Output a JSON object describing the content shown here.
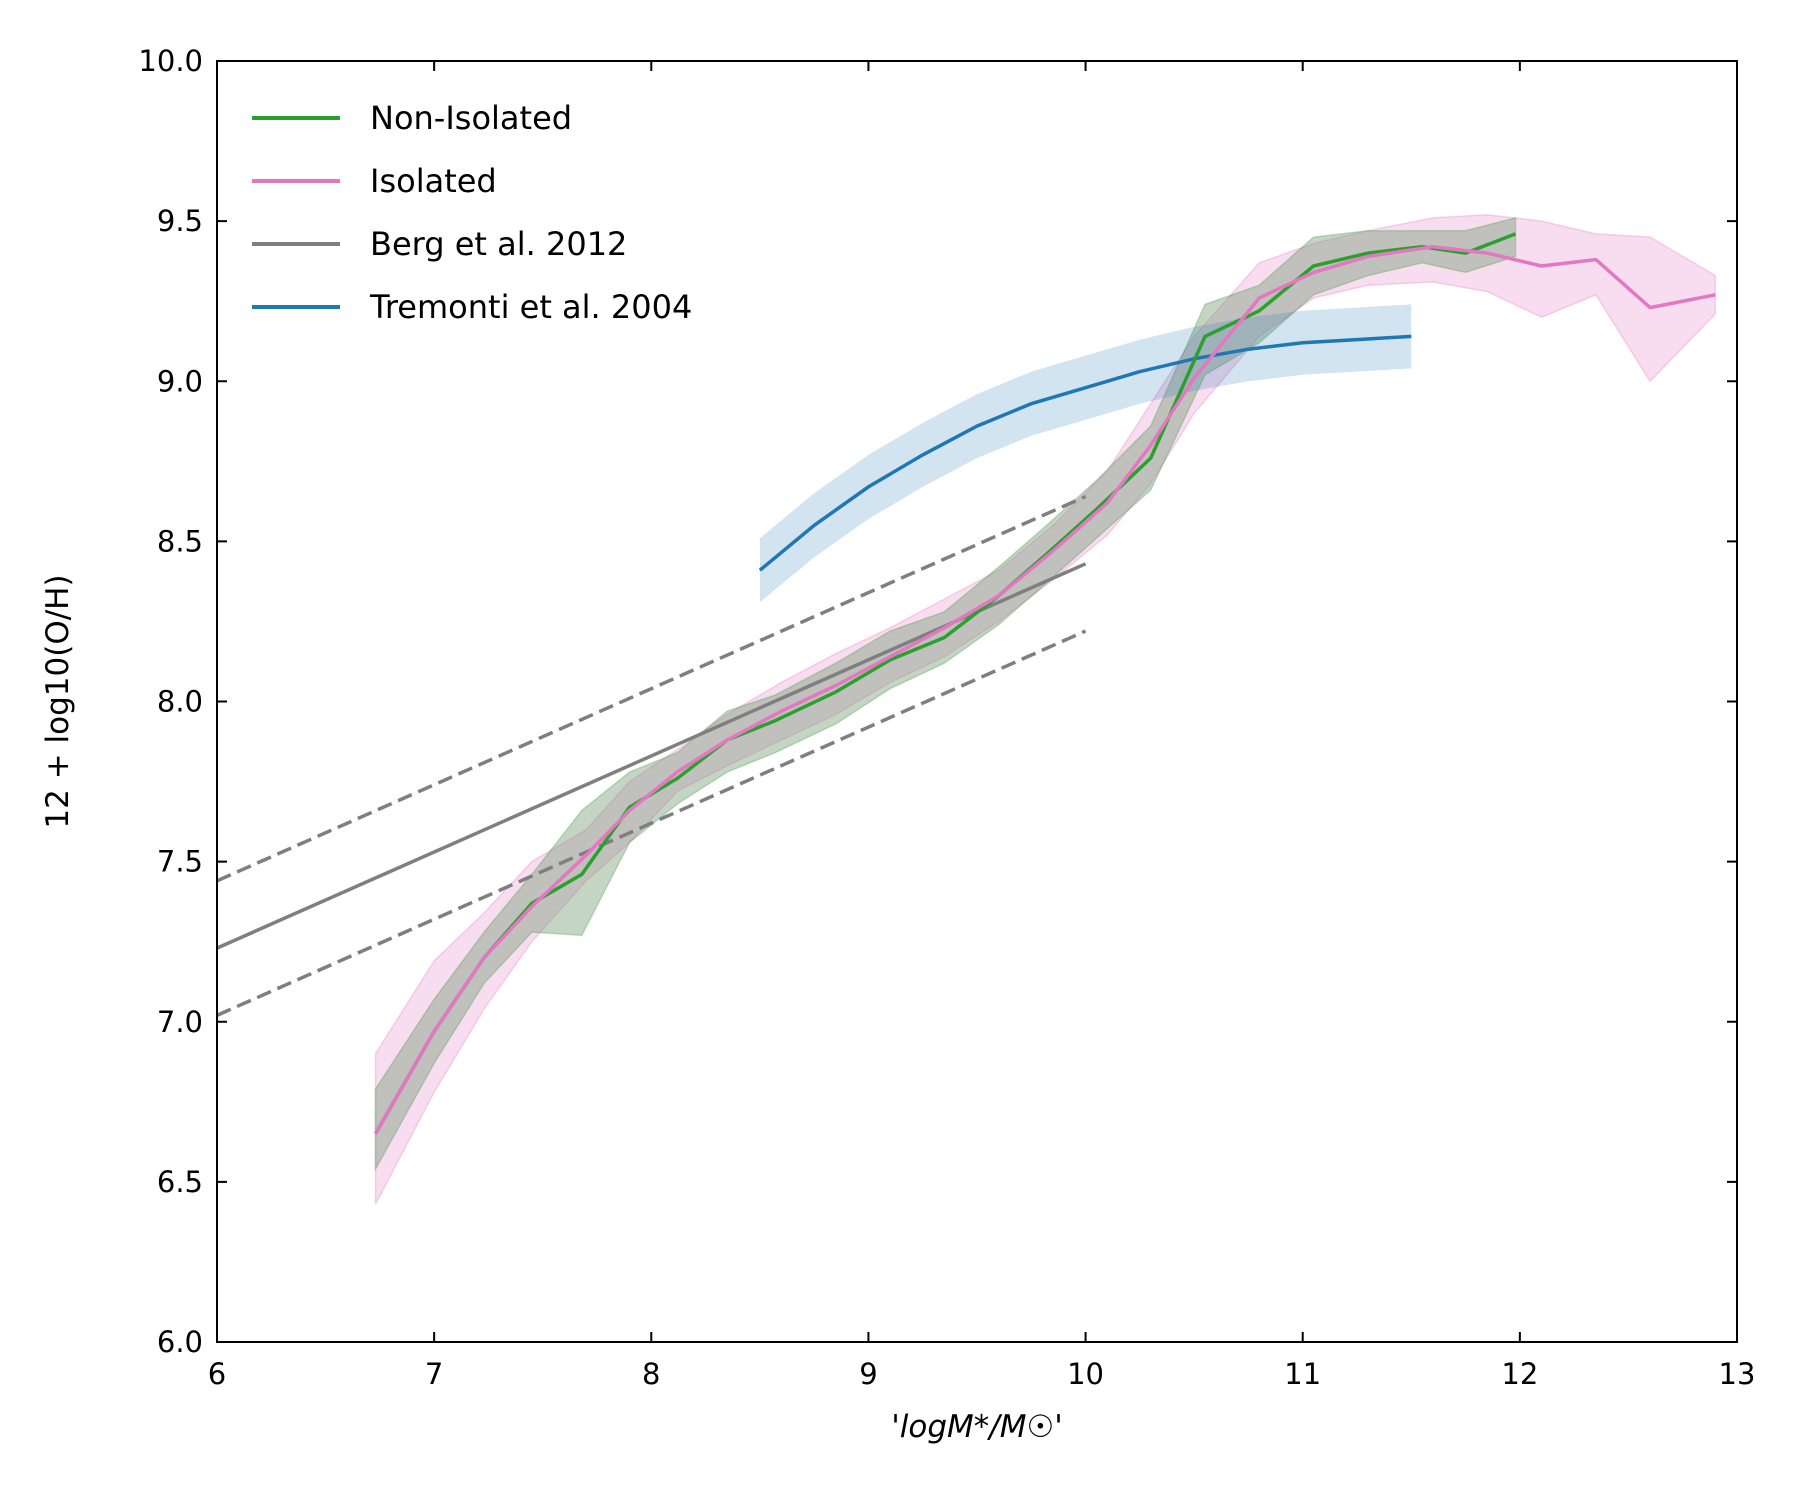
{
  "chart_data": {
    "type": "line",
    "xlabel": "'logM*/M☉'",
    "ylabel": "12 + log10(O/H)",
    "xlim": [
      6,
      13
    ],
    "ylim": [
      6.0,
      10.0
    ],
    "x_ticks": [
      "6",
      "7",
      "8",
      "9",
      "10",
      "11",
      "12",
      "13"
    ],
    "y_ticks": [
      "6.0",
      "6.5",
      "7.0",
      "7.5",
      "8.0",
      "8.5",
      "9.0",
      "9.5",
      "10.0"
    ],
    "legend_position": "top-left",
    "series": [
      {
        "name": "Non-Isolated",
        "color": "#2ca02c",
        "x": [
          6.73,
          7.0,
          7.23,
          7.45,
          7.68,
          7.9,
          8.12,
          8.35,
          8.57,
          8.85,
          9.1,
          9.35,
          9.6,
          9.82,
          10.05,
          10.3,
          10.55,
          10.8,
          11.05,
          11.3,
          11.55,
          11.75,
          11.98
        ],
        "y": [
          6.65,
          6.97,
          7.2,
          7.37,
          7.46,
          7.67,
          7.76,
          7.88,
          7.94,
          8.03,
          8.13,
          8.2,
          8.33,
          8.46,
          8.6,
          8.76,
          9.14,
          9.22,
          9.36,
          9.4,
          9.42,
          9.4,
          9.46
        ],
        "band_lower": [
          6.54,
          6.87,
          7.12,
          7.28,
          7.27,
          7.56,
          7.68,
          7.78,
          7.84,
          7.93,
          8.04,
          8.12,
          8.24,
          8.37,
          8.51,
          8.66,
          9.02,
          9.12,
          9.27,
          9.33,
          9.37,
          9.34,
          9.39
        ],
        "band_upper": [
          6.79,
          7.07,
          7.28,
          7.46,
          7.66,
          7.78,
          7.84,
          7.97,
          8.02,
          8.12,
          8.22,
          8.28,
          8.42,
          8.55,
          8.69,
          8.86,
          9.24,
          9.3,
          9.45,
          9.47,
          9.47,
          9.47,
          9.51
        ]
      },
      {
        "name": "Isolated",
        "color": "#e377c2",
        "x": [
          6.73,
          7.0,
          7.23,
          7.45,
          7.7,
          7.9,
          8.12,
          8.35,
          8.6,
          8.85,
          9.1,
          9.35,
          9.6,
          9.85,
          10.1,
          10.3,
          10.5,
          10.8,
          11.05,
          11.3,
          11.6,
          11.85,
          12.1,
          12.35,
          12.6,
          12.9
        ],
        "y": [
          6.65,
          6.97,
          7.2,
          7.36,
          7.52,
          7.66,
          7.78,
          7.88,
          7.97,
          8.05,
          8.14,
          8.23,
          8.33,
          8.47,
          8.62,
          8.8,
          9.01,
          9.26,
          9.34,
          9.39,
          9.42,
          9.4,
          9.36,
          9.38,
          9.23,
          9.27
        ],
        "band_lower": [
          6.43,
          6.78,
          7.04,
          7.25,
          7.44,
          7.56,
          7.72,
          7.8,
          7.88,
          7.96,
          8.06,
          8.14,
          8.25,
          8.38,
          8.52,
          8.68,
          8.9,
          9.14,
          9.26,
          9.3,
          9.31,
          9.28,
          9.2,
          9.27,
          9.0,
          9.21
        ],
        "band_upper": [
          6.9,
          7.19,
          7.34,
          7.5,
          7.6,
          7.75,
          7.85,
          7.96,
          8.06,
          8.15,
          8.23,
          8.32,
          8.41,
          8.55,
          8.72,
          8.93,
          9.14,
          9.37,
          9.43,
          9.47,
          9.51,
          9.52,
          9.5,
          9.46,
          9.45,
          9.33
        ]
      },
      {
        "name": "Berg et al. 2012",
        "color": "#7f7f7f",
        "x": [
          6.0,
          10.0
        ],
        "y": [
          7.23,
          8.43
        ],
        "dashed_upper_y": [
          7.44,
          8.64
        ],
        "dashed_lower_y": [
          7.02,
          8.22
        ]
      },
      {
        "name": "Tremonti et al. 2004",
        "color": "#1f77b4",
        "x": [
          8.5,
          8.75,
          9.0,
          9.25,
          9.5,
          9.75,
          10.0,
          10.25,
          10.5,
          10.75,
          11.0,
          11.25,
          11.5
        ],
        "y": [
          8.41,
          8.55,
          8.67,
          8.77,
          8.86,
          8.93,
          8.98,
          9.03,
          9.07,
          9.1,
          9.12,
          9.13,
          9.14
        ],
        "band_half_width": 0.1
      }
    ]
  }
}
